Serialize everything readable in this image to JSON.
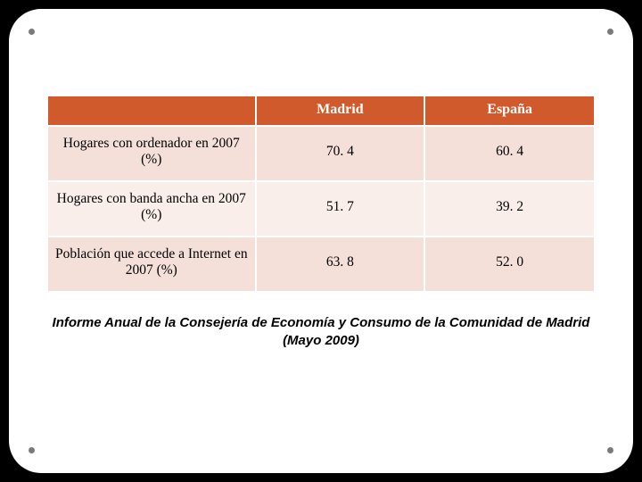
{
  "table": {
    "type": "table",
    "header_bg": "#d05a2c",
    "header_fg": "#ffffff",
    "band_a_bg": "#f4e0d9",
    "band_b_bg": "#f9eee9",
    "columns": [
      "",
      "Madrid",
      "España"
    ],
    "rows": [
      {
        "label": "Hogares con ordenador en 2007 (%)",
        "madrid": "70. 4",
        "espana": "60. 4"
      },
      {
        "label": "Hogares con banda ancha en 2007 (%)",
        "madrid": "51. 7",
        "espana": "39. 2"
      },
      {
        "label": "Población que accede a Internet en 2007 (%)",
        "madrid": "63. 8",
        "espana": "52. 0"
      }
    ]
  },
  "caption": "Informe Anual de la Consejería de Economía y Consumo de la Comunidad de Madrid (Mayo 2009)"
}
